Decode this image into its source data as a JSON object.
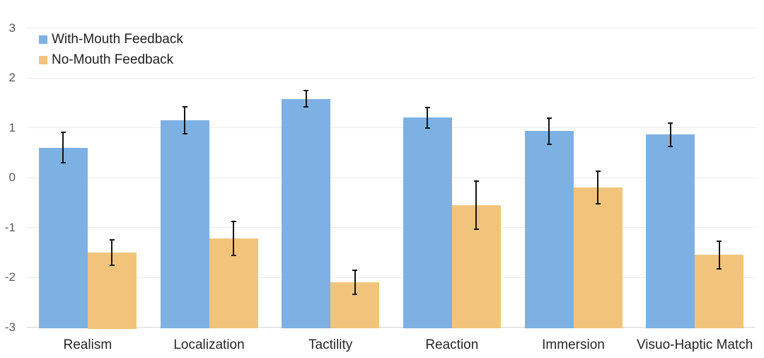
{
  "colors": {
    "series1": "#7db1e3",
    "series2": "#f2c47b",
    "gridline": "#ebebeb",
    "axis_line": "#d6d6d6",
    "tick_label": "#595959",
    "category_label": "#262626",
    "legend_text": "#1f1f1f",
    "error_bar": "#141414",
    "background": "#ffffff"
  },
  "legend": {
    "items": [
      {
        "label": "With-Mouth Feedback",
        "color": "#7db1e3"
      },
      {
        "label": "No-Mouth Feedback",
        "color": "#f2c47b"
      }
    ]
  },
  "chart_data": {
    "type": "bar",
    "categories": [
      "Realism",
      "Localization",
      "Tactility",
      "Reaction",
      "Immersion",
      "Visuo-Haptic Match"
    ],
    "series": [
      {
        "name": "With-Mouth Feedback",
        "color": "#7db1e3",
        "values": [
          0.6,
          1.15,
          1.58,
          1.2,
          0.93,
          0.86
        ],
        "errors": [
          0.32,
          0.28,
          0.18,
          0.22,
          0.28,
          0.25
        ]
      },
      {
        "name": "No-Mouth Feedback",
        "color": "#f2c47b",
        "values": [
          -1.5,
          -1.22,
          -2.1,
          -0.55,
          -0.2,
          -1.55
        ],
        "errors": [
          0.27,
          0.36,
          0.26,
          0.5,
          0.34,
          0.29
        ]
      }
    ],
    "ylim": [
      -3,
      3
    ],
    "yticks": [
      3,
      2,
      1,
      0,
      -1,
      -2,
      -3
    ],
    "grid": true,
    "legend_position": "top-left",
    "bar_baseline": -3,
    "error_bars": true
  }
}
